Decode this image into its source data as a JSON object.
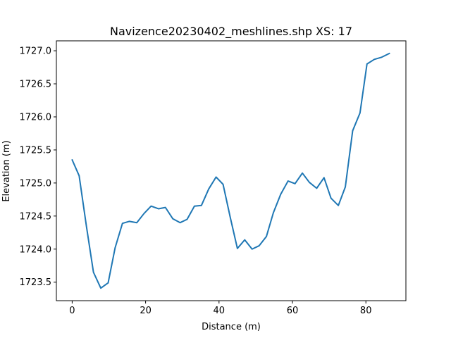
{
  "chart_data": {
    "type": "line",
    "title": "Navizence20230402_meshlines.shp XS: 17",
    "xlabel": "Distance (m)",
    "ylabel": "Elevation (m)",
    "xlim": [
      -4.3,
      90.9
    ],
    "ylim": [
      1723.22,
      1727.15
    ],
    "xticks": [
      0,
      20,
      40,
      60,
      80
    ],
    "xtick_labels": [
      "0",
      "20",
      "40",
      "60",
      "80"
    ],
    "yticks": [
      1723.5,
      1724.0,
      1724.5,
      1725.0,
      1725.5,
      1726.0,
      1726.5,
      1727.0
    ],
    "ytick_labels": [
      "1723.5",
      "1724.0",
      "1724.5",
      "1725.0",
      "1725.5",
      "1726.0",
      "1726.5",
      "1727.0"
    ],
    "grid": false,
    "series": [
      {
        "color": "#1f77b4",
        "x": [
          0.0,
          1.9,
          3.9,
          5.8,
          7.8,
          9.8,
          11.7,
          13.7,
          15.6,
          17.6,
          19.6,
          21.5,
          23.5,
          25.4,
          27.4,
          29.4,
          31.3,
          33.3,
          35.2,
          37.2,
          39.2,
          41.1,
          43.1,
          45.0,
          47.0,
          49.0,
          50.9,
          52.9,
          54.8,
          56.8,
          58.8,
          60.7,
          62.7,
          64.6,
          66.6,
          68.6,
          70.5,
          72.5,
          74.4,
          76.4,
          78.4,
          80.3,
          82.3,
          84.2,
          86.4
        ],
        "values": [
          1725.35,
          1725.11,
          1724.34,
          1723.65,
          1723.41,
          1723.49,
          1724.02,
          1724.39,
          1724.42,
          1724.4,
          1724.54,
          1724.65,
          1724.61,
          1724.63,
          1724.46,
          1724.4,
          1724.45,
          1724.65,
          1724.66,
          1724.91,
          1725.09,
          1724.98,
          1724.47,
          1724.01,
          1724.14,
          1724.0,
          1724.05,
          1724.19,
          1724.55,
          1724.83,
          1725.03,
          1724.99,
          1725.15,
          1725.01,
          1724.92,
          1725.08,
          1724.77,
          1724.66,
          1724.94,
          1725.79,
          1726.06,
          1726.8,
          1726.87,
          1726.9,
          1726.96
        ]
      }
    ]
  }
}
